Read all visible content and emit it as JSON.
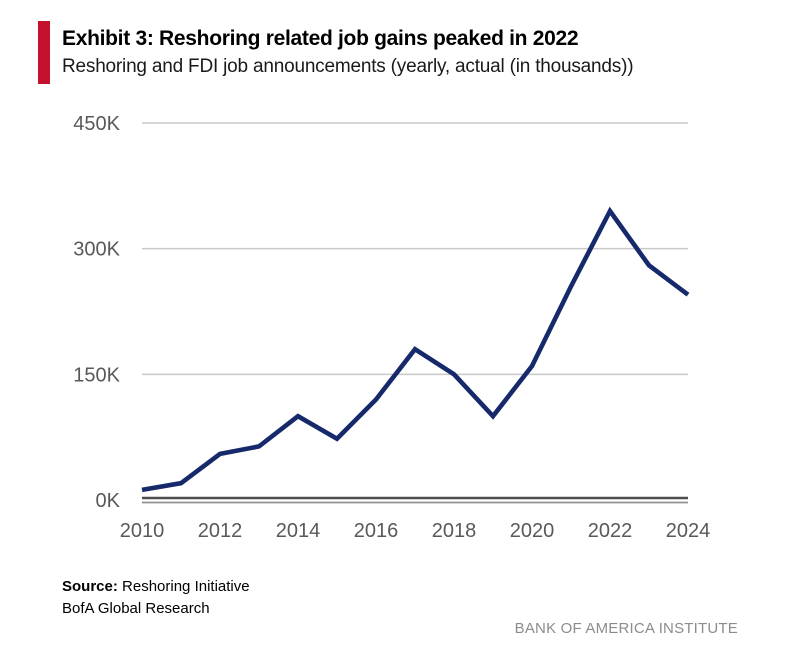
{
  "header": {
    "exhibit_title": "Exhibit 3: Reshoring related job gains peaked in 2022",
    "subtitle": "Reshoring and FDI job announcements (yearly, actual (in thousands))",
    "accent_color": "#C4122E"
  },
  "chart_data": {
    "type": "line",
    "series_name": "Reshoring and FDI job announcements (in thousands)",
    "x": [
      2010,
      2011,
      2012,
      2013,
      2014,
      2015,
      2016,
      2017,
      2018,
      2019,
      2020,
      2021,
      2022,
      2023,
      2024
    ],
    "values": [
      12,
      20,
      55,
      64,
      100,
      73,
      120,
      180,
      150,
      100,
      160,
      255,
      345,
      280,
      245
    ],
    "unit": "K",
    "xlim": [
      2010,
      2024
    ],
    "ylim": [
      0,
      450
    ],
    "yticks": [
      0,
      150,
      300,
      450
    ],
    "ytick_labels": [
      "0K",
      "150K",
      "300K",
      "450K"
    ],
    "xticks": [
      2010,
      2012,
      2014,
      2016,
      2018,
      2020,
      2022,
      2024
    ],
    "grid": "horizontal",
    "legend": "none",
    "line_color": "#15296B",
    "gridline_color": "#C9C9C9",
    "axis_line_dark_color": "#4D4D4D",
    "axis_line_light_color": "#909090",
    "tick_text_color": "#595959"
  },
  "footer": {
    "source_label": "Source:",
    "source_value": " Reshoring Initiative",
    "source_line2": "BofA Global Research",
    "branding": "BANK OF AMERICA INSTITUTE"
  }
}
